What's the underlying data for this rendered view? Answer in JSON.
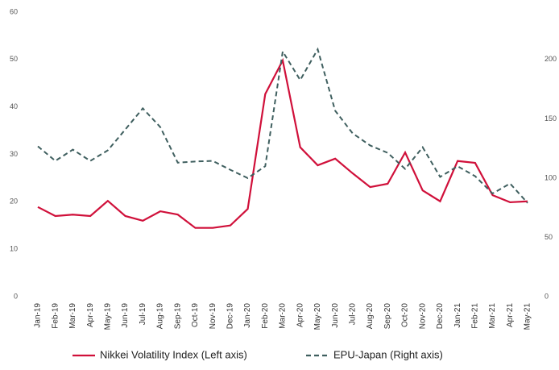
{
  "chart_data": {
    "type": "line",
    "categories": [
      "Jan-19",
      "Feb-19",
      "Mar-19",
      "Apr-19",
      "May-19",
      "Jun-19",
      "Jul-19",
      "Aug-19",
      "Sep-19",
      "Oct-19",
      "Nov-19",
      "Dec-19",
      "Jan-20",
      "Feb-20",
      "Mar-20",
      "Apr-20",
      "May-20",
      "Jun-20",
      "Jul-20",
      "Aug-20",
      "Sep-20",
      "Oct-20",
      "Nov-20",
      "Dec-20",
      "Jan-21",
      "Feb-21",
      "Mar-21",
      "Apr-21",
      "May-21"
    ],
    "series": [
      {
        "name": "Nikkei Volatility Index (Left axis)",
        "color": "#d0103a",
        "dash": false,
        "values": [
          18.9,
          17.0,
          17.3,
          17.0,
          20.2,
          17.0,
          16.0,
          18.0,
          17.3,
          14.5,
          14.5,
          15.0,
          18.5,
          42.7,
          49.8,
          31.5,
          27.7,
          29.1,
          26.0,
          23.1,
          23.8,
          30.4,
          22.4,
          20.1,
          28.6,
          28.2,
          21.4,
          19.9,
          20.1
        ]
      },
      {
        "name": "EPU-Japan (Right axis)",
        "color": "#3f5f5f",
        "dash": true,
        "axis": "y2",
        "values": [
          126.8,
          114.5,
          124,
          114.5,
          123.4,
          141,
          158.8,
          143,
          113,
          114,
          114.5,
          107,
          100,
          110,
          206.8,
          182.7,
          208.6,
          156.8,
          137.7,
          127.5,
          121.3,
          107.7,
          126,
          101,
          110,
          101.6,
          87,
          95.4,
          79
        ]
      }
    ],
    "ylim": [
      0,
      60
    ],
    "yticks": [
      0,
      10,
      20,
      30,
      40,
      50,
      60
    ],
    "y2lim": [
      0,
      240
    ],
    "y2ticks": [
      0,
      50,
      100,
      150,
      200
    ]
  }
}
